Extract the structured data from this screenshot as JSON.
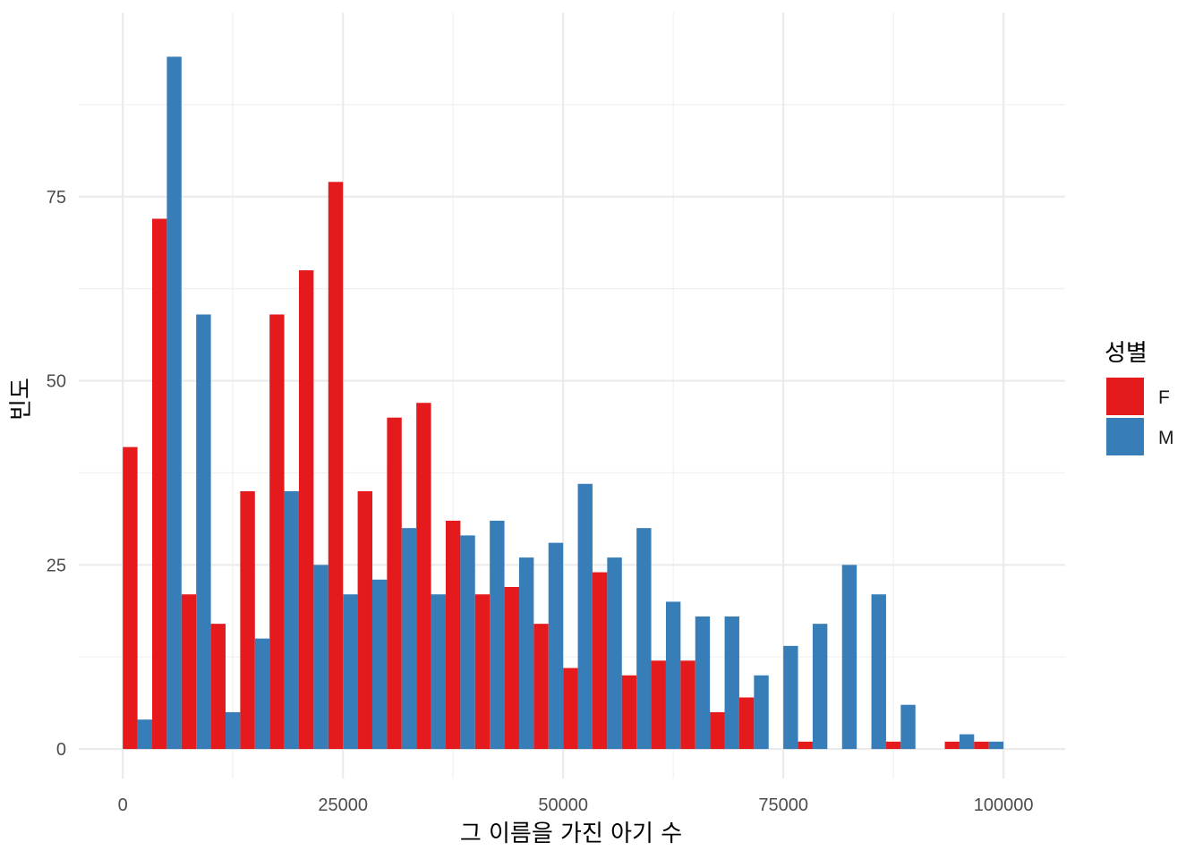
{
  "chart_data": {
    "type": "bar",
    "subtype": "histogram-dodged",
    "xlabel": "그 이름을 가진 아기 수",
    "ylabel": "빈도",
    "xlim": [
      -5000,
      107000
    ],
    "ylim": [
      -4,
      100
    ],
    "x_ticks": [
      0,
      25000,
      50000,
      75000,
      100000
    ],
    "x_tick_labels": [
      "0",
      "25000",
      "50000",
      "75000",
      "100000"
    ],
    "y_ticks": [
      0,
      25,
      50,
      75
    ],
    "y_tick_labels": [
      "0",
      "25",
      "50",
      "75"
    ],
    "grid": true,
    "legend": {
      "title": "성별",
      "position": "right"
    },
    "bin_width": 3333.33,
    "bin_centers": [
      1666.7,
      5000,
      8333.3,
      11666.7,
      15000,
      18333.3,
      21666.7,
      25000,
      28333.3,
      31666.7,
      35000,
      38333.3,
      41666.7,
      45000,
      48333.3,
      51666.7,
      55000,
      58333.3,
      61666.7,
      65000,
      68333.3,
      71666.7,
      75000,
      78333.3,
      81666.7,
      85000,
      88333.3,
      91666.7,
      95000,
      98333.3
    ],
    "series": [
      {
        "name": "F",
        "color": "#E41A1C",
        "values": [
          41,
          72,
          21,
          17,
          35,
          59,
          65,
          77,
          35,
          45,
          47,
          31,
          21,
          22,
          17,
          11,
          24,
          10,
          12,
          12,
          5,
          7,
          0,
          1,
          0,
          0,
          1,
          0,
          1,
          1
        ]
      },
      {
        "name": "M",
        "color": "#377EB8",
        "values": [
          4,
          94,
          59,
          5,
          15,
          35,
          25,
          21,
          23,
          30,
          21,
          29,
          31,
          26,
          28,
          36,
          26,
          30,
          20,
          18,
          18,
          10,
          14,
          17,
          25,
          21,
          6,
          0,
          2,
          1
        ]
      }
    ]
  }
}
